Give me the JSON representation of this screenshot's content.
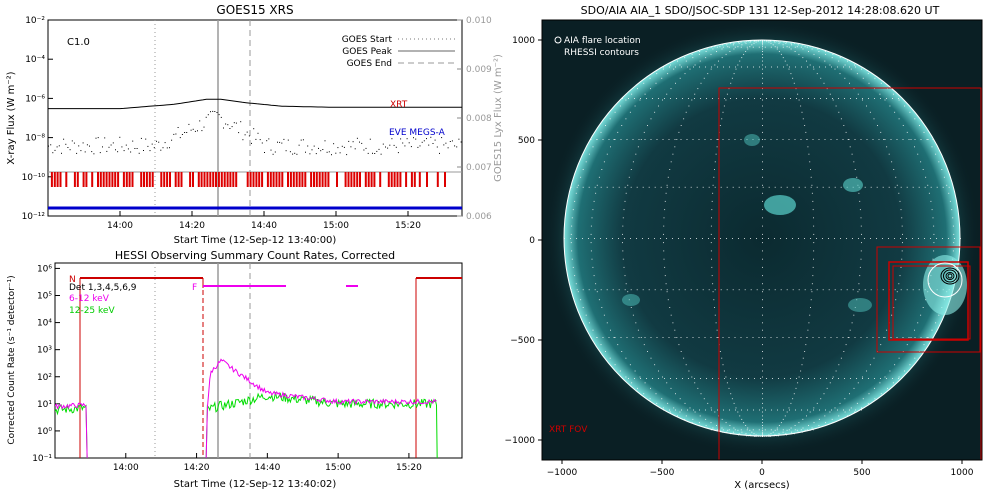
{
  "goes": {
    "title": "GOES15 XRS",
    "class_label": "C1.0",
    "ylabel_left": "X-ray Flux (W m⁻²)",
    "ylabel_right": "GOES15 Lyx Flux (W m⁻²)",
    "xlabel": "Start Time (12-Sep-12 13:40:00)",
    "left_ticks": [
      "10⁻²",
      "10⁻⁴",
      "10⁻⁶",
      "10⁻⁸",
      "10⁻¹⁰",
      "10⁻¹²"
    ],
    "right_ticks": [
      "0.010",
      "0.009",
      "0.008",
      "0.007",
      "0.006"
    ],
    "x_ticks": [
      "14:00",
      "14:20",
      "14:40",
      "15:00",
      "15:20"
    ],
    "legend": [
      "GOES Start",
      "GOES Peak",
      "GOES End"
    ],
    "label_xrt": "XRT",
    "label_eve": "EVE MEGS-A",
    "colors": {
      "xrt": "#cc0000",
      "eve": "#0000cc",
      "grid": "#9a9a9a"
    }
  },
  "hessi": {
    "title": "HESSI Observing Summary Count Rates, Corrected",
    "ylabel": "Corrected Count Rate (s⁻¹ detector⁻¹)",
    "xlabel": "Start Time (12-Sep-12 13:40:02)",
    "y_ticks": [
      "10⁶",
      "10⁵",
      "10⁴",
      "10³",
      "10²",
      "10¹",
      "10⁰",
      "10⁻¹"
    ],
    "x_ticks": [
      "14:00",
      "14:20",
      "14:40",
      "15:00",
      "15:20"
    ],
    "detectors": "Det 1,3,4,5,6,9",
    "band1": "6-12 keV",
    "band2": "12-25 keV",
    "n_label": "N",
    "f_label": "F",
    "colors": {
      "band1": "#ee00ee",
      "band2": "#00dd00",
      "night": "#cc0000"
    }
  },
  "aia": {
    "title": "SDO/AIA AIA_1 SDO/JSOC-SDP 131 12-Sep-2012 14:28:08.620 UT",
    "legend1": "AIA flare location",
    "legend2": "RHESSI contours",
    "fov_label": "XRT FOV",
    "xlabel": "X (arcsecs)",
    "x_ticks": [
      "−1000",
      "−500",
      "0",
      "500",
      "1000"
    ],
    "y_ticks": [
      "1000",
      "500",
      "0",
      "−500",
      "−1000"
    ]
  },
  "chart_data": [
    {
      "type": "line",
      "title": "GOES15 XRS",
      "xlabel": "Start Time (12-Sep-12 13:40:00)",
      "ylabel": "X-ray Flux (W m⁻²)",
      "y_scale": "log",
      "ylim": [
        1e-12,
        0.01
      ],
      "xlim": [
        "13:40",
        "15:35"
      ],
      "y2label": "GOES15 Lyx Flux (W m⁻²)",
      "y2lim": [
        0.006,
        0.01
      ],
      "series": [
        {
          "name": "XRT",
          "x": [
            "13:40",
            "14:00",
            "14:15",
            "14:24",
            "14:28",
            "14:35",
            "14:45",
            "15:00",
            "15:35"
          ],
          "values": [
            3e-07,
            3e-07,
            5e-07,
            9e-07,
            9e-07,
            6e-07,
            4e-07,
            3.5e-07,
            3.5e-07
          ]
        },
        {
          "name": "EVE MEGS-A",
          "x": [
            "13:40",
            "15:35"
          ],
          "values": [
            1e-12,
            1e-12
          ]
        }
      ],
      "markers": {
        "GOES Start": "14:10",
        "GOES Peak": "14:27",
        "GOES End": "14:36"
      }
    },
    {
      "type": "line",
      "title": "HESSI Observing Summary Count Rates, Corrected",
      "xlabel": "Start Time (12-Sep-12 13:40:02)",
      "ylabel": "Corrected Count Rate (s⁻¹ detector⁻¹)",
      "y_scale": "log",
      "ylim": [
        0.1,
        1000000.0
      ],
      "xlim": [
        "13:40",
        "15:35"
      ],
      "series": [
        {
          "name": "6-12 keV",
          "x": [
            "13:40",
            "13:48",
            "14:23",
            "14:24",
            "14:27",
            "14:30",
            "14:40",
            "15:00",
            "15:28"
          ],
          "values": [
            8,
            9,
            7,
            150,
            400,
            200,
            25,
            12,
            12
          ]
        },
        {
          "name": "12-25 keV",
          "x": [
            "13:40",
            "13:48",
            "14:23",
            "14:26",
            "14:30",
            "14:40",
            "15:00",
            "15:28"
          ],
          "values": [
            6,
            7,
            6,
            8,
            10,
            20,
            10,
            10
          ]
        }
      ]
    },
    {
      "type": "heatmap",
      "title": "SDO/AIA AIA_1 SDO/JSOC-SDP 131 12-Sep-2012 14:28:08.620 UT",
      "xlabel": "X (arcsecs)",
      "xlim": [
        -1100,
        1100
      ],
      "ylim": [
        -1100,
        1100
      ]
    }
  ]
}
